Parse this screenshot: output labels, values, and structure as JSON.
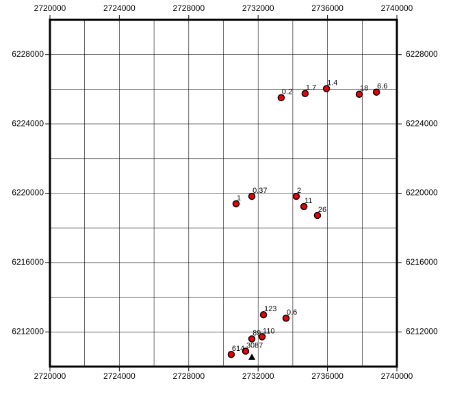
{
  "chart_data": {
    "type": "scatter",
    "x": [
      2733330,
      2734710,
      2735940,
      2737830,
      2738820,
      2730730,
      2731640,
      2734200,
      2734640,
      2735420,
      2732310,
      2733610,
      2731640,
      2732230,
      2731280,
      2730450
    ],
    "values": [
      6225510,
      6225750,
      6226030,
      6225710,
      6225830,
      6219390,
      6219820,
      6219820,
      6219230,
      6218720,
      6212990,
      6212790,
      6211600,
      6211720,
      6210890,
      6210700
    ],
    "labels": [
      "0.2",
      "1.7",
      "1.4",
      "18",
      "6.6",
      "1",
      "0.37",
      "2",
      "11",
      "26",
      "123",
      "0.6",
      "89",
      "110",
      "3087",
      "614"
    ],
    "color": "#e8000b",
    "station": {
      "x": 2731640,
      "y": 6210550
    },
    "xlim": [
      2720000,
      2740000
    ],
    "ylim": [
      6210000,
      6230000
    ],
    "xticks": [
      2720000,
      2724000,
      2728000,
      2732000,
      2736000,
      2740000
    ],
    "yticks": [
      6212000,
      6216000,
      6220000,
      6224000,
      6228000
    ],
    "xgrid": [
      2722000,
      2724000,
      2726000,
      2728000,
      2730000,
      2732000,
      2734000,
      2736000,
      2738000
    ],
    "ygrid": [
      6212000,
      6214000,
      6216000,
      6218000,
      6220000,
      6222000,
      6224000,
      6226000,
      6228000
    ],
    "grid": true
  }
}
